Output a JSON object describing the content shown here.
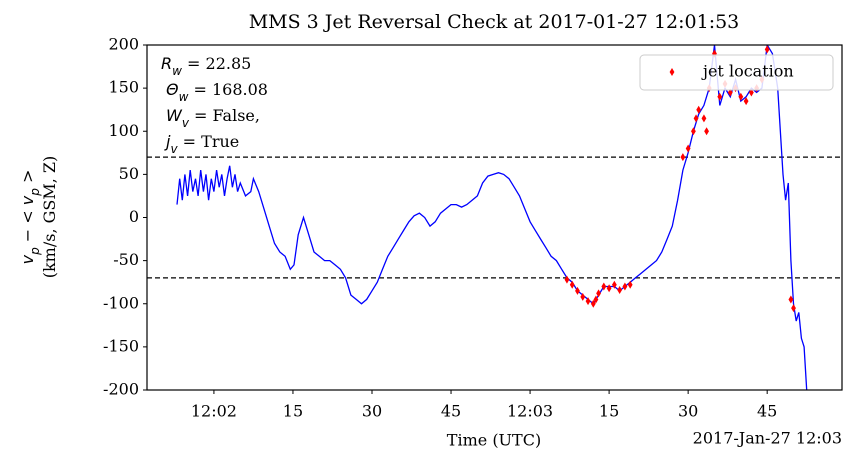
{
  "chart_data": {
    "type": "line",
    "title": "MMS 3 Jet Reversal Check at 2017-01-27 12:01:53",
    "xlabel": "Time (UTC)",
    "x_offset_label": "2017-Jan-27 12:03",
    "ylabel": [
      [
        {
          "t": "v"
        },
        {
          "sub": "p"
        },
        {
          "t": " − < "
        },
        {
          "t": "v"
        },
        {
          "sub": "p"
        },
        {
          "t": " >"
        }
      ],
      [
        {
          "t": "(km/s, GSM, Z)"
        }
      ]
    ],
    "annotation": [
      [
        {
          "t": "R"
        },
        {
          "sub": "w"
        },
        {
          "t": " = 22.85"
        }
      ],
      [
        {
          "t": "Θ"
        },
        {
          "sub": "w"
        },
        {
          "t": " = 168.08"
        }
      ],
      [
        {
          "t": "W"
        },
        {
          "sub": "v"
        },
        {
          "t": " = False,"
        }
      ],
      [
        {
          "t": "j"
        },
        {
          "sub": "v"
        },
        {
          "t": " = True"
        }
      ]
    ],
    "xlim": [
      43307.3,
      43439.2
    ],
    "xticks": [
      {
        "value": 43320,
        "label": "12:02"
      },
      {
        "value": 43335,
        "label": "15"
      },
      {
        "value": 43350,
        "label": "30"
      },
      {
        "value": 43365,
        "label": "45"
      },
      {
        "value": 43380,
        "label": "12:03"
      },
      {
        "value": 43395,
        "label": "15"
      },
      {
        "value": 43410,
        "label": "30"
      },
      {
        "value": 43425,
        "label": "45"
      }
    ],
    "ylim": [
      -200,
      200
    ],
    "yticks": [
      -200,
      -150,
      -100,
      -50,
      0,
      50,
      100,
      150,
      200
    ],
    "hlines": [
      70,
      -70
    ],
    "color": "#0000ff",
    "x": [
      43313,
      43313.5,
      43314,
      43314.5,
      43315,
      43315.5,
      43316,
      43316.5,
      43317,
      43317.5,
      43318,
      43318.5,
      43319,
      43319.5,
      43320,
      43320.5,
      43321,
      43321.5,
      43322,
      43322.5,
      43323,
      43323.5,
      43324,
      43324.5,
      43325,
      43326,
      43327,
      43327.5,
      43328.5,
      43329.5,
      43330.5,
      43331.5,
      43332.5,
      43333.5,
      43334.5,
      43335.2,
      43336,
      43337,
      43338,
      43339,
      43340,
      43341,
      43342,
      43343,
      43344,
      43345,
      43346,
      43347,
      43348,
      43349,
      43350,
      43351,
      43352,
      43353,
      43354,
      43355,
      43356,
      43357,
      43358,
      43359,
      43360,
      43361,
      43362,
      43363,
      43364,
      43365,
      43366,
      43367,
      43368,
      43369,
      43370,
      43371,
      43372,
      43373,
      43374,
      43375,
      43376,
      43377,
      43378,
      43379,
      43380,
      43381,
      43382,
      43383,
      43384,
      43385,
      43386,
      43387,
      43388,
      43389,
      43390,
      43391,
      43392,
      43393,
      43394,
      43395,
      43396,
      43397,
      43398,
      43399,
      43400,
      43401,
      43402,
      43403,
      43404,
      43405,
      43406,
      43407,
      43408,
      43409,
      43410,
      43411,
      43412,
      43413,
      43414,
      43415,
      43416,
      43417,
      43418,
      43419,
      43420,
      43421,
      43422,
      43423,
      43424,
      43425,
      43426,
      43427,
      43428,
      43428.5,
      43429,
      43429.5,
      43430,
      43430.5,
      43431,
      43431.5,
      43432,
      43432.5
    ],
    "values": [
      15,
      45,
      20,
      50,
      25,
      55,
      30,
      45,
      25,
      55,
      30,
      50,
      20,
      45,
      30,
      55,
      35,
      50,
      25,
      45,
      60,
      35,
      50,
      30,
      40,
      25,
      30,
      45,
      30,
      10,
      -10,
      -30,
      -40,
      -45,
      -60,
      -55,
      -20,
      0,
      -20,
      -40,
      -45,
      -50,
      -50,
      -55,
      -60,
      -70,
      -90,
      -95,
      -100,
      -95,
      -85,
      -75,
      -60,
      -45,
      -35,
      -25,
      -15,
      -5,
      2,
      5,
      0,
      -10,
      -5,
      5,
      10,
      15,
      15,
      12,
      15,
      20,
      25,
      40,
      48,
      50,
      52,
      50,
      45,
      35,
      25,
      10,
      -5,
      -15,
      -25,
      -35,
      -45,
      -50,
      -60,
      -70,
      -75,
      -85,
      -90,
      -95,
      -100,
      -90,
      -80,
      -80,
      -80,
      -85,
      -80,
      -75,
      -70,
      -65,
      -60,
      -55,
      -50,
      -40,
      -25,
      -10,
      20,
      55,
      75,
      100,
      120,
      130,
      150,
      200,
      130,
      150,
      140,
      160,
      135,
      140,
      150,
      145,
      150,
      200,
      190,
      150,
      50,
      20,
      40,
      -50,
      -100,
      -120,
      -110,
      -140,
      -150,
      -200
    ],
    "jet": {
      "name": "jet location",
      "color": "#ff0000",
      "x": [
        43387,
        43388,
        43389,
        43390,
        43391,
        43392,
        43392.5,
        43393,
        43394,
        43395,
        43396,
        43397,
        43398,
        43399,
        43409,
        43410,
        43411,
        43411.5,
        43412,
        43413,
        43413.5,
        43414,
        43415,
        43416,
        43417,
        43418,
        43419,
        43420,
        43421,
        43422,
        43423,
        43424,
        43425,
        43429.5,
        43430
      ],
      "values": [
        -72,
        -78,
        -85,
        -92,
        -97,
        -100,
        -95,
        -88,
        -80,
        -82,
        -78,
        -84,
        -80,
        -78,
        70,
        80,
        100,
        115,
        125,
        115,
        100,
        150,
        190,
        140,
        155,
        145,
        150,
        140,
        135,
        145,
        150,
        160,
        195,
        -95,
        -105
      ]
    },
    "legend": "upper right"
  }
}
